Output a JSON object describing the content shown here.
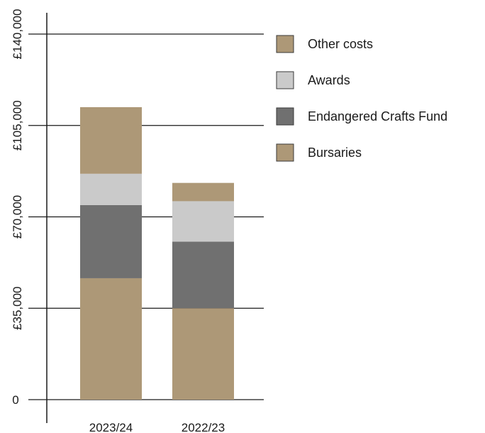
{
  "chart_data": {
    "type": "bar",
    "stacked": true,
    "categories": [
      "2023/24",
      "2022/23"
    ],
    "series": [
      {
        "name": "Bursaries",
        "values": [
          46500,
          35000
        ],
        "color": "#ad9877"
      },
      {
        "name": "Endangered Crafts Fund",
        "values": [
          28000,
          25500
        ],
        "color": "#707070"
      },
      {
        "name": "Awards",
        "values": [
          12000,
          15500
        ],
        "color": "#cacaca"
      },
      {
        "name": "Other costs",
        "values": [
          25500,
          7000
        ],
        "color": "#ad9877"
      }
    ],
    "ylim": [
      0,
      140000
    ],
    "yticks": [
      {
        "value": 0,
        "label": "0"
      },
      {
        "value": 35000,
        "label": "£35,000"
      },
      {
        "value": 70000,
        "label": "£70,000"
      },
      {
        "value": 105000,
        "label": "£105,000"
      },
      {
        "value": 140000,
        "label": "£140,000"
      }
    ],
    "grid": true,
    "legend_position": "right",
    "legend_order": [
      "Other costs",
      "Awards",
      "Endangered Crafts Fund",
      "Bursaries"
    ]
  }
}
